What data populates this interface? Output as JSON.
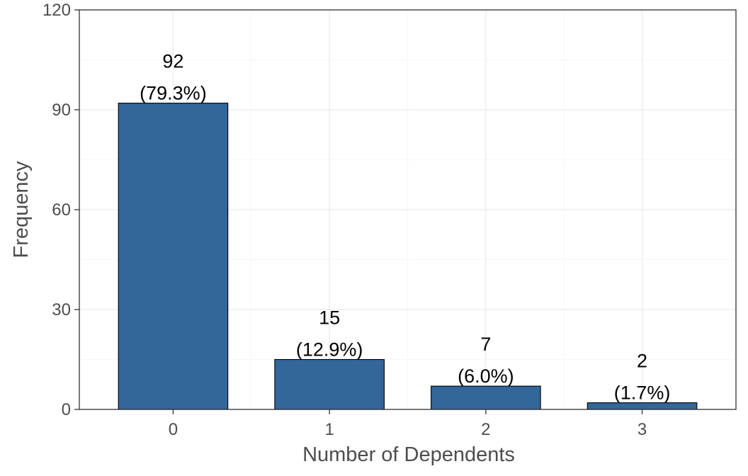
{
  "chart_data": {
    "type": "bar",
    "categories": [
      "0",
      "1",
      "2",
      "3"
    ],
    "values": [
      92,
      15,
      7,
      2
    ],
    "data_labels": [
      {
        "count": "92",
        "percent": "(79.3%)"
      },
      {
        "count": "15",
        "percent": "(12.9%)"
      },
      {
        "count": "7",
        "percent": "(6.0%)"
      },
      {
        "count": "2",
        "percent": "(1.7%)"
      }
    ],
    "xlabel": "Number of Dependents",
    "ylabel": "Frequency",
    "ylim": [
      0,
      120
    ],
    "yticks": [
      0,
      30,
      60,
      90,
      120
    ],
    "grid": true,
    "bar_color": "#336699"
  }
}
